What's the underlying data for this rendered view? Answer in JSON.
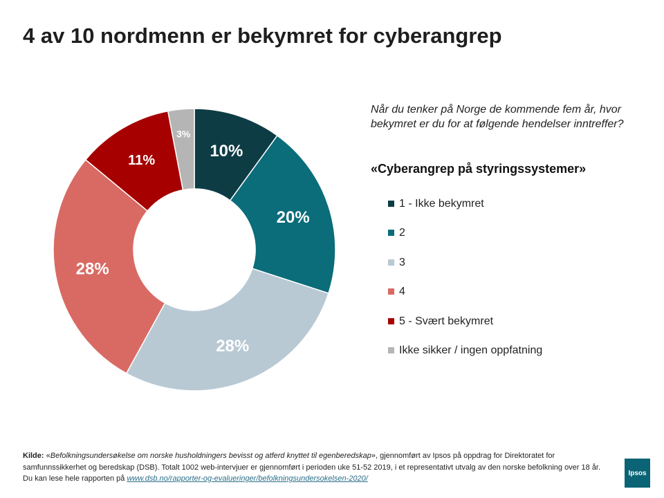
{
  "title": "4 av 10 nordmenn er bekymret for cyberangrep",
  "question": "Når du tenker på Norge de kommende fem år, hvor bekymret er du for at følgende hendelser inntreffer?",
  "subject": "«Cyberangrep på styringssystemer»",
  "chart_data": {
    "type": "pie",
    "donut": true,
    "legend_position": "right",
    "categories": [
      "1 - Ikke bekymret",
      "2",
      "3",
      "4",
      "5 - Svært bekymret",
      "Ikke sikker / ingen oppfatning"
    ],
    "values": [
      10,
      20,
      28,
      28,
      11,
      3
    ],
    "labels": [
      "10%",
      "20%",
      "28%",
      "28%",
      "11%",
      "3%"
    ],
    "colors": [
      "#0d3c44",
      "#0b6c7a",
      "#b8c9d4",
      "#d96a63",
      "#a60000",
      "#b5b5b5"
    ]
  },
  "source": {
    "label": "Kilde:",
    "quote_open": "«",
    "study": "Befolkningsundersøkelse om norske husholdningers bevisst og atferd knyttet til egenberedskap",
    "text": "», gjennomført av Ipsos på oppdrag for Direktoratet for samfunnssikkerhet og beredskap (DSB). Totalt 1002 web-intervjuer er gjennomført i perioden uke 51-52 2019, i et representativt utvalg av den norske befolkning over 18 år.  Du kan lese hele rapporten på ",
    "link": "www.dsb.no/rapporter-og-evalueringer/befolkningsundersokelsen-2020/"
  },
  "logo_text": "Ipsos"
}
